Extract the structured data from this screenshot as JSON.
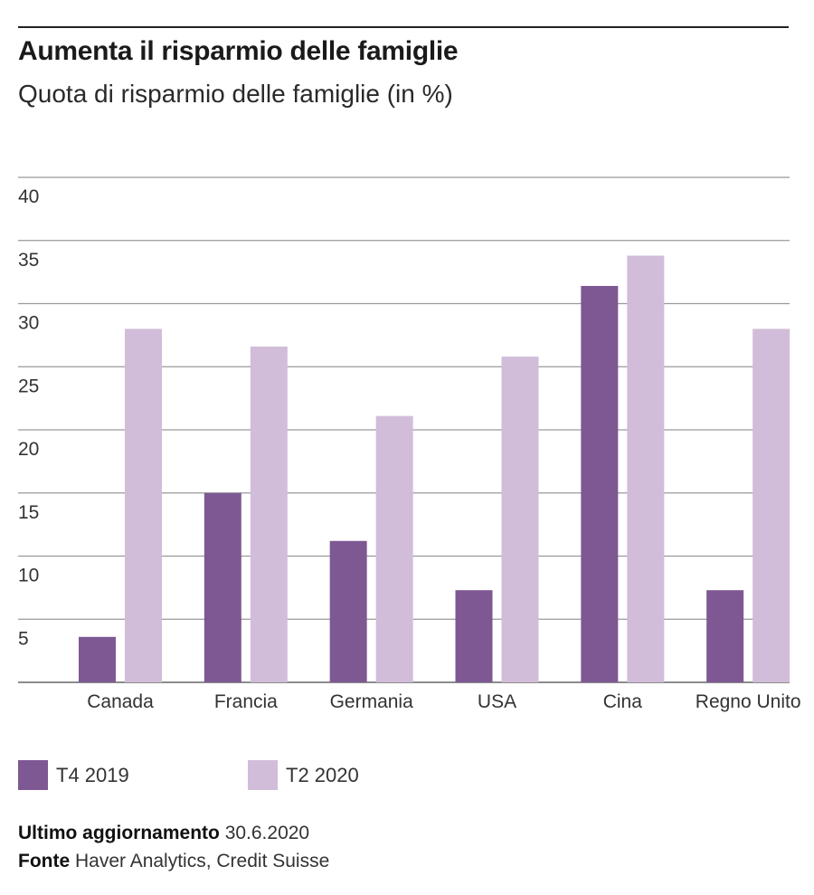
{
  "header": {
    "title": "Aumenta il risparmio delle famiglie",
    "subtitle": "Quota di risparmio delle famiglie (in %)"
  },
  "chart_data": {
    "type": "bar",
    "title": "Aumenta il risparmio delle famiglie",
    "subtitle": "Quota di risparmio delle famiglie (in %)",
    "categories": [
      "Canada",
      "Francia",
      "Germania",
      "USA",
      "Cina",
      "Regno Unito"
    ],
    "series": [
      {
        "name": "T4 2019",
        "color": "#7e5893",
        "values": [
          3.6,
          15.0,
          11.2,
          7.3,
          31.4,
          7.3
        ]
      },
      {
        "name": "T2 2020",
        "color": "#d1bdd9",
        "values": [
          28.0,
          26.6,
          21.1,
          25.8,
          33.8,
          28.0
        ]
      }
    ],
    "yticks": [
      "5",
      "10",
      "15",
      "20",
      "25",
      "30",
      "35",
      "40"
    ],
    "ylim": [
      0,
      40
    ],
    "grid": true,
    "legend_position": "bottom"
  },
  "footer": {
    "updated_label": "Ultimo aggiornamento",
    "updated_value": "30.6.2020",
    "source_label": "Fonte",
    "source_value": "Haver Analytics, Credit Suisse"
  }
}
